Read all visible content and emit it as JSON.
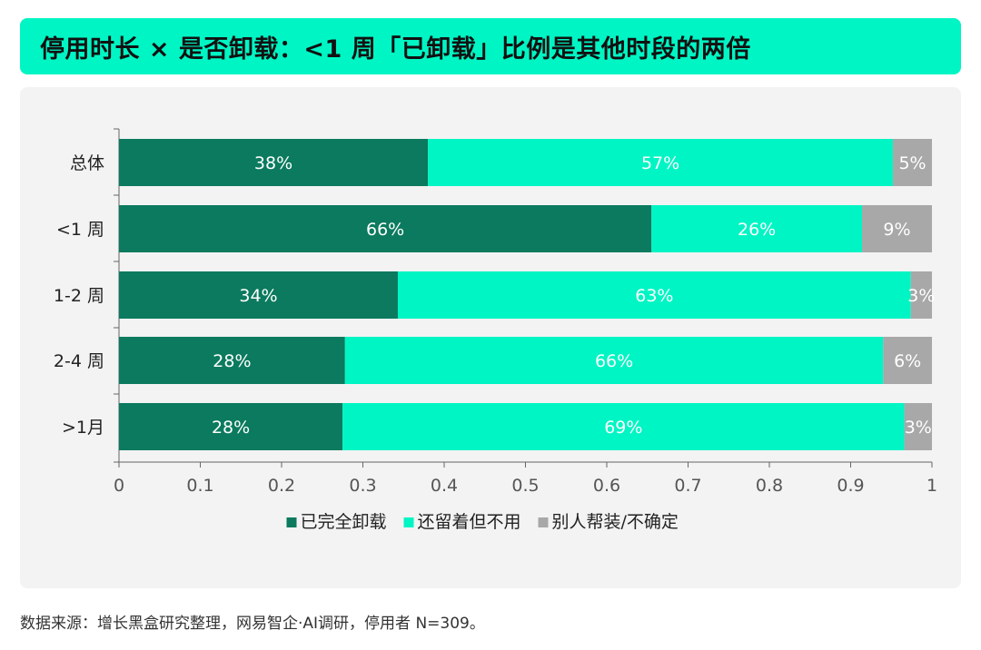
{
  "header": {
    "title": "停用时长 × 是否卸载：<1 周「已卸载」比例是其他时段的两倍"
  },
  "source": {
    "text": "数据来源：增长黑盒研究整理，网易智企·AI调研，停用者 N=309。"
  },
  "colors": {
    "uninstalled": "#0b7a5e",
    "kept": "#00f5c4",
    "other": "#a8a8a8",
    "accent": "#00f5c4"
  },
  "chart_data": {
    "type": "bar",
    "orientation": "horizontal",
    "stacked": true,
    "categories": [
      "总体",
      "<1 周",
      "1-2 周",
      "2-4 周",
      ">1月"
    ],
    "series": [
      {
        "name": "已完全卸载",
        "values": [
          0.38,
          0.655,
          0.343,
          0.278,
          0.275
        ],
        "labels": [
          "38%",
          "66%",
          "34%",
          "28%",
          "28%"
        ]
      },
      {
        "name": "还留着但不用",
        "values": [
          0.572,
          0.259,
          0.631,
          0.662,
          0.691
        ],
        "labels": [
          "57%",
          "26%",
          "63%",
          "66%",
          "69%"
        ]
      },
      {
        "name": "别人帮装/不确定",
        "values": [
          0.048,
          0.086,
          0.026,
          0.06,
          0.034
        ],
        "labels": [
          "5%",
          "9%",
          "3%",
          "6%",
          "3%"
        ]
      }
    ],
    "xlim": [
      0,
      1
    ],
    "xticks": [
      "0",
      "0.1",
      "0.2",
      "0.3",
      "0.4",
      "0.5",
      "0.6",
      "0.7",
      "0.8",
      "0.9",
      "1"
    ],
    "legend_position": "bottom",
    "grid": false
  }
}
